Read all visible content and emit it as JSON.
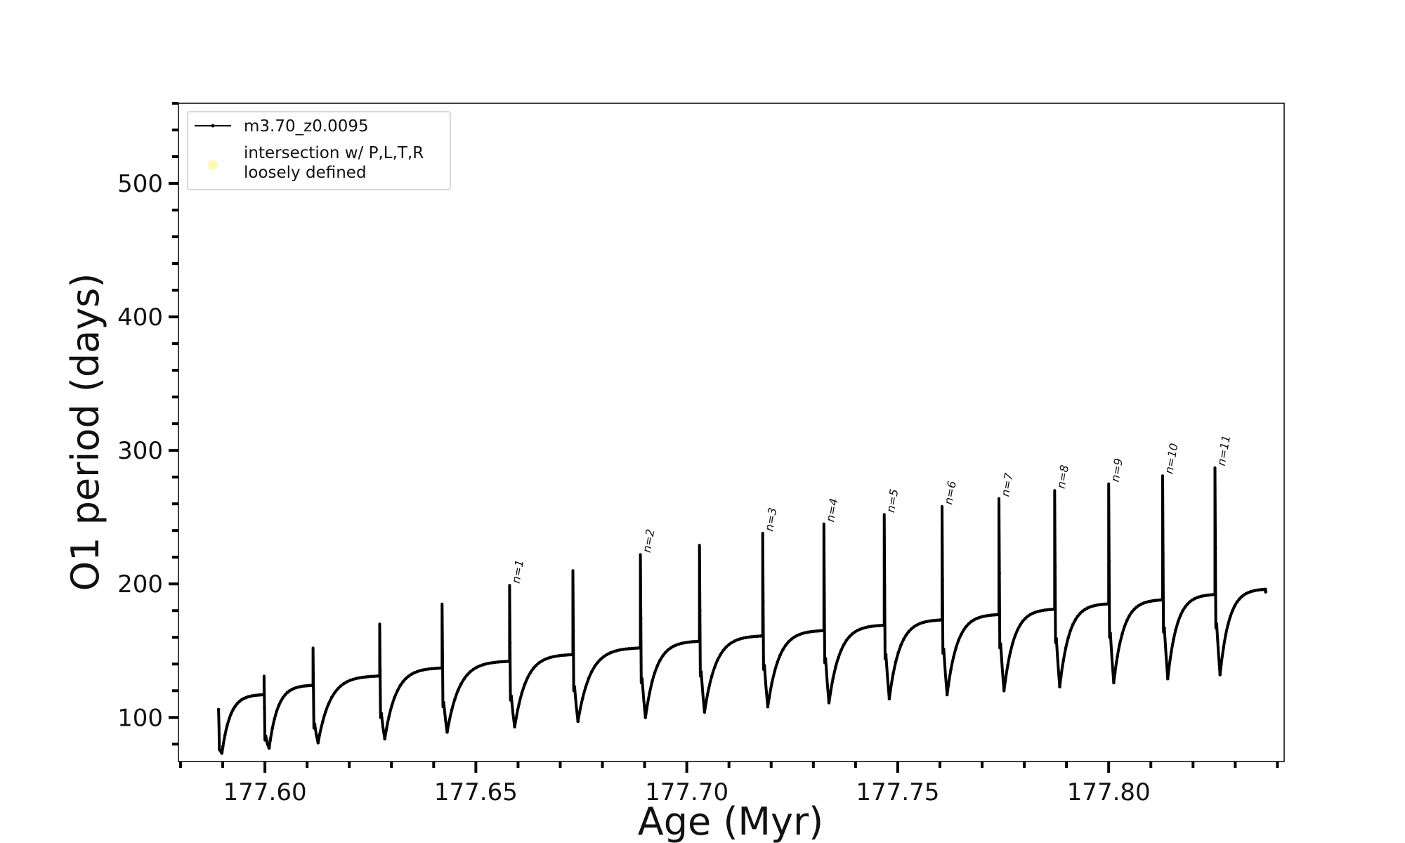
{
  "chart_data": {
    "type": "line",
    "xlabel": "Age (Myr)",
    "ylabel": "O1 period (days)",
    "xlim": [
      177.5795,
      177.8416
    ],
    "ylim": [
      67,
      560
    ],
    "x_ticks": [
      177.6,
      177.65,
      177.7,
      177.75,
      177.8
    ],
    "x_tick_labels": [
      "177.60",
      "177.65",
      "177.70",
      "177.75",
      "177.80"
    ],
    "y_ticks": [
      100,
      200,
      300,
      400,
      500
    ],
    "y_tick_labels": [
      "100",
      "200",
      "300",
      "400",
      "500"
    ],
    "grid": false,
    "legend_position": "top-left",
    "legend": [
      {
        "label": "m3.70_z0.0095",
        "marker": "line-dot",
        "color": "#000000"
      },
      {
        "label_lines": [
          "intersection w/ P,L,T,R",
          "loosely defined"
        ],
        "marker": "circle",
        "color": "#fff9b0"
      }
    ],
    "series": [
      {
        "name": "m3.70_z0.0095",
        "color": "#000000",
        "start": [
          177.589,
          106
        ],
        "cycles": [
          {
            "spike_x": 177.5998,
            "spike_peak": 131,
            "drop": 83,
            "prev_plateau": 117,
            "min": 77
          },
          {
            "spike_x": 177.6114,
            "spike_peak": 152,
            "drop": 92,
            "prev_plateau": 124,
            "min": 81
          },
          {
            "spike_x": 177.6272,
            "spike_peak": 170,
            "drop": 100,
            "prev_plateau": 131,
            "min": 84
          },
          {
            "spike_x": 177.642,
            "spike_peak": 185,
            "drop": 108,
            "prev_plateau": 137,
            "min": 89
          },
          {
            "spike_x": 177.658,
            "spike_peak": 199,
            "drop": 113,
            "prev_plateau": 142,
            "min": 93,
            "label": "n=1"
          },
          {
            "spike_x": 177.673,
            "spike_peak": 210,
            "drop": 120,
            "prev_plateau": 147,
            "min": 97
          },
          {
            "spike_x": 177.689,
            "spike_peak": 222,
            "drop": 126,
            "prev_plateau": 152,
            "min": 100,
            "label": "n=2"
          },
          {
            "spike_x": 177.703,
            "spike_peak": 229,
            "drop": 131,
            "prev_plateau": 157,
            "min": 104
          },
          {
            "spike_x": 177.718,
            "spike_peak": 238,
            "drop": 136,
            "prev_plateau": 161,
            "min": 108,
            "label": "n=3"
          },
          {
            "spike_x": 177.7325,
            "spike_peak": 245,
            "drop": 141,
            "prev_plateau": 165,
            "min": 111,
            "label": "n=4"
          },
          {
            "spike_x": 177.7468,
            "spike_peak": 252,
            "drop": 144,
            "prev_plateau": 169,
            "min": 114,
            "label": "n=5"
          },
          {
            "spike_x": 177.7605,
            "spike_peak": 258,
            "drop": 148,
            "prev_plateau": 173,
            "min": 117,
            "label": "n=6"
          },
          {
            "spike_x": 177.774,
            "spike_peak": 264,
            "drop": 152,
            "prev_plateau": 177,
            "min": 120,
            "label": "n=7"
          },
          {
            "spike_x": 177.7872,
            "spike_peak": 270,
            "drop": 156,
            "prev_plateau": 181,
            "min": 123,
            "label": "n=8"
          },
          {
            "spike_x": 177.8,
            "spike_peak": 275,
            "drop": 160,
            "prev_plateau": 185,
            "min": 126,
            "label": "n=9"
          },
          {
            "spike_x": 177.8128,
            "spike_peak": 281,
            "drop": 164,
            "prev_plateau": 188,
            "min": 129,
            "label": "n=10"
          },
          {
            "spike_x": 177.8252,
            "spike_peak": 287,
            "drop": 167,
            "prev_plateau": 192,
            "min": 132,
            "label": "n=11"
          }
        ],
        "end": [
          177.8372,
          194
        ]
      }
    ]
  }
}
